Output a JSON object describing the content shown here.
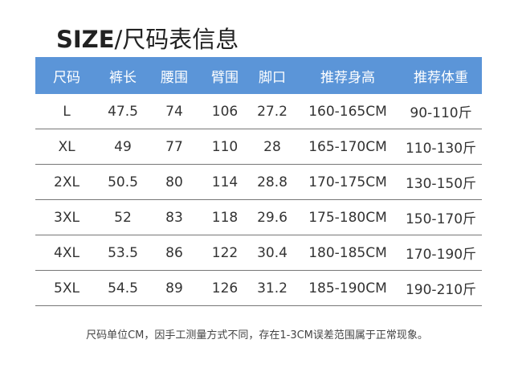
{
  "title": {
    "bold": "SIZE",
    "rest": "/尺码表信息"
  },
  "table": {
    "headers": [
      "尺码",
      "裤长",
      "腰围",
      "臂围",
      "脚口",
      "推荐身高",
      "推荐体重"
    ],
    "rows": [
      [
        "L",
        "47.5",
        "74",
        "106",
        "27.2",
        "160-165CM",
        "90-110斤"
      ],
      [
        "XL",
        "49",
        "77",
        "110",
        "28",
        "165-170CM",
        "110-130斤"
      ],
      [
        "2XL",
        "50.5",
        "80",
        "114",
        "28.8",
        "170-175CM",
        "130-150斤"
      ],
      [
        "3XL",
        "52",
        "83",
        "118",
        "29.6",
        "175-180CM",
        "150-170斤"
      ],
      [
        "4XL",
        "53.5",
        "86",
        "122",
        "30.4",
        "180-185CM",
        "170-190斤"
      ],
      [
        "5XL",
        "54.5",
        "89",
        "126",
        "31.2",
        "185-190CM",
        "190-210斤"
      ]
    ]
  },
  "note": "尺码单位CM，因手工测量方式不同，存在1-3CM误差范围属于正常现象。",
  "colors": {
    "header_bg": "#5b95d8"
  }
}
